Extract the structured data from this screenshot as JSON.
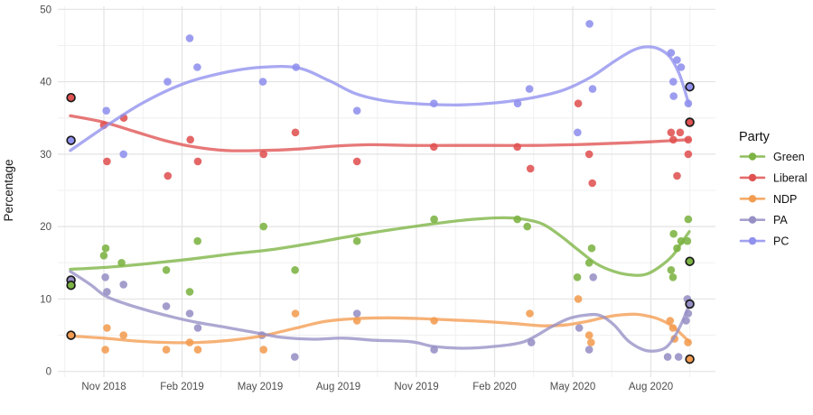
{
  "figure": {
    "y_axis_label": "Percentage",
    "y_ticks": [
      0,
      10,
      20,
      30,
      40,
      50
    ],
    "y_minor_ticks": [
      5,
      15,
      25,
      35,
      45
    ],
    "x_ticks": [
      "Nov 2018",
      "Feb 2019",
      "May 2019",
      "Aug 2019",
      "Nov 2019",
      "Feb 2020",
      "May 2020",
      "Aug 2020"
    ],
    "x_tick_years": [
      2018.8333,
      2019.0833,
      2019.3333,
      2019.5833,
      2019.8333,
      2020.0833,
      2020.3333,
      2020.5833
    ],
    "grid_major_color": "#e3e3e3",
    "grid_minor_color": "#f0f0f0",
    "axis_text_color": "#4d4d4d"
  },
  "legend": {
    "title": "Party",
    "items": [
      {
        "label": "Green",
        "color": "#7cb342"
      },
      {
        "label": "Liberal",
        "color": "#e05252"
      },
      {
        "label": "NDP",
        "color": "#f39c51"
      },
      {
        "label": "PA",
        "color": "#968fc5"
      },
      {
        "label": "PC",
        "color": "#9090ee"
      }
    ]
  },
  "chart_data": {
    "type": "scatter",
    "title": "",
    "xlabel": "",
    "ylabel": "Percentage",
    "ylim": [
      0,
      50
    ],
    "x_domain_years": [
      2018.69,
      2020.79
    ],
    "grid": true,
    "legend_position": "right",
    "description": "Poll results (points), loess trend lines, and circled election results (Sep 2018 and Sep 2020) by party.",
    "series": [
      {
        "name": "Green",
        "color": "#7cb342",
        "points": [
          [
            2018.833,
            16
          ],
          [
            2018.839,
            17
          ],
          [
            2018.89,
            15
          ],
          [
            2019.033,
            14
          ],
          [
            2019.108,
            11
          ],
          [
            2019.133,
            18
          ],
          [
            2019.344,
            20
          ],
          [
            2019.445,
            14
          ],
          [
            2019.643,
            18
          ],
          [
            2019.89,
            21
          ],
          [
            2020.156,
            21
          ],
          [
            2020.188,
            20
          ],
          [
            2020.348,
            13
          ],
          [
            2020.386,
            15
          ],
          [
            2020.394,
            17
          ],
          [
            2020.648,
            14
          ],
          [
            2020.654,
            13
          ],
          [
            2020.656,
            19
          ],
          [
            2020.667,
            17
          ],
          [
            2020.68,
            18
          ],
          [
            2020.7,
            18
          ],
          [
            2020.703,
            21
          ]
        ],
        "trend": [
          [
            2018.726,
            14.1
          ],
          [
            2018.848,
            14.4
          ],
          [
            2018.978,
            14.9
          ],
          [
            2019.108,
            15.5
          ],
          [
            2019.238,
            16.2
          ],
          [
            2019.368,
            16.8
          ],
          [
            2019.498,
            17.7
          ],
          [
            2019.628,
            18.7
          ],
          [
            2019.758,
            19.6
          ],
          [
            2019.873,
            20.3
          ],
          [
            2019.989,
            20.9
          ],
          [
            2020.09,
            21.2
          ],
          [
            2020.162,
            21.1
          ],
          [
            2020.234,
            20.4
          ],
          [
            2020.292,
            18.8
          ],
          [
            2020.35,
            16.8
          ],
          [
            2020.408,
            14.9
          ],
          [
            2020.466,
            13.8
          ],
          [
            2020.524,
            13.3
          ],
          [
            2020.567,
            13.4
          ],
          [
            2020.61,
            14.4
          ],
          [
            2020.653,
            16.0
          ],
          [
            2020.682,
            17.8
          ],
          [
            2020.706,
            19.3
          ]
        ]
      },
      {
        "name": "Liberal",
        "color": "#e05252",
        "points": [
          [
            2018.833,
            34
          ],
          [
            2018.843,
            29
          ],
          [
            2018.897,
            35
          ],
          [
            2019.038,
            27
          ],
          [
            2019.11,
            32
          ],
          [
            2019.134,
            29
          ],
          [
            2019.344,
            30
          ],
          [
            2019.446,
            33
          ],
          [
            2019.643,
            29
          ],
          [
            2019.889,
            31
          ],
          [
            2020.156,
            31
          ],
          [
            2020.198,
            28
          ],
          [
            2020.351,
            37
          ],
          [
            2020.386,
            30
          ],
          [
            2020.396,
            26
          ],
          [
            2020.648,
            33
          ],
          [
            2020.655,
            32
          ],
          [
            2020.667,
            27
          ],
          [
            2020.677,
            33
          ],
          [
            2020.703,
            32
          ],
          [
            2020.703,
            30
          ]
        ],
        "trend": [
          [
            2018.726,
            35.3
          ],
          [
            2018.833,
            34.4
          ],
          [
            2018.934,
            33.1
          ],
          [
            2019.035,
            31.8
          ],
          [
            2019.122,
            31.0
          ],
          [
            2019.223,
            30.5
          ],
          [
            2019.339,
            30.5
          ],
          [
            2019.455,
            30.7
          ],
          [
            2019.57,
            31.1
          ],
          [
            2019.686,
            31.3
          ],
          [
            2019.816,
            31.2
          ],
          [
            2019.946,
            31.2
          ],
          [
            2020.076,
            31.2
          ],
          [
            2020.206,
            31.2
          ],
          [
            2020.336,
            31.3
          ],
          [
            2020.466,
            31.5
          ],
          [
            2020.581,
            31.7
          ],
          [
            2020.706,
            32.0
          ]
        ]
      },
      {
        "name": "NDP",
        "color": "#f39c51",
        "points": [
          [
            2018.838,
            3
          ],
          [
            2018.843,
            6
          ],
          [
            2018.896,
            5
          ],
          [
            2019.033,
            3
          ],
          [
            2019.108,
            4
          ],
          [
            2019.134,
            3
          ],
          [
            2019.344,
            3
          ],
          [
            2019.446,
            8
          ],
          [
            2019.643,
            7
          ],
          [
            2019.89,
            7
          ],
          [
            2020.196,
            8
          ],
          [
            2020.351,
            10
          ],
          [
            2020.386,
            5
          ],
          [
            2020.392,
            4
          ],
          [
            2020.645,
            7
          ],
          [
            2020.654,
            6
          ],
          [
            2020.659,
            4.5
          ],
          [
            2020.702,
            4
          ]
        ],
        "trend": [
          [
            2018.726,
            4.9
          ],
          [
            2018.833,
            4.6
          ],
          [
            2018.934,
            4.2
          ],
          [
            2019.035,
            4.0
          ],
          [
            2019.136,
            4.0
          ],
          [
            2019.238,
            4.3
          ],
          [
            2019.339,
            4.9
          ],
          [
            2019.44,
            5.9
          ],
          [
            2019.541,
            6.9
          ],
          [
            2019.642,
            7.3
          ],
          [
            2019.744,
            7.4
          ],
          [
            2019.845,
            7.3
          ],
          [
            2019.946,
            7.1
          ],
          [
            2020.047,
            6.9
          ],
          [
            2020.148,
            6.6
          ],
          [
            2020.234,
            6.3
          ],
          [
            2020.307,
            6.4
          ],
          [
            2020.379,
            6.9
          ],
          [
            2020.451,
            7.6
          ],
          [
            2020.524,
            7.9
          ],
          [
            2020.567,
            7.7
          ],
          [
            2020.61,
            7.2
          ],
          [
            2020.653,
            6.2
          ],
          [
            2020.682,
            5.1
          ],
          [
            2020.706,
            4.1
          ]
        ]
      },
      {
        "name": "PA",
        "color": "#968fc5",
        "points": [
          [
            2018.838,
            13
          ],
          [
            2018.843,
            11
          ],
          [
            2018.896,
            12
          ],
          [
            2019.033,
            9
          ],
          [
            2019.108,
            8
          ],
          [
            2019.134,
            6
          ],
          [
            2019.339,
            5
          ],
          [
            2019.444,
            2
          ],
          [
            2019.643,
            8
          ],
          [
            2019.89,
            3
          ],
          [
            2020.201,
            4
          ],
          [
            2020.354,
            6
          ],
          [
            2020.386,
            3
          ],
          [
            2020.399,
            13
          ],
          [
            2020.637,
            2
          ],
          [
            2020.672,
            2
          ],
          [
            2020.696,
            7
          ],
          [
            2020.7,
            10
          ],
          [
            2020.703,
            8
          ]
        ],
        "trend": [
          [
            2018.726,
            13.8
          ],
          [
            2018.79,
            12.0
          ],
          [
            2018.839,
            10.4
          ],
          [
            2018.905,
            9.3
          ],
          [
            2018.983,
            8.3
          ],
          [
            2019.064,
            7.4
          ],
          [
            2019.128,
            6.8
          ],
          [
            2019.209,
            6.2
          ],
          [
            2019.272,
            5.7
          ],
          [
            2019.339,
            5.2
          ],
          [
            2019.405,
            4.7
          ],
          [
            2019.504,
            4.45
          ],
          [
            2019.599,
            4.6
          ],
          [
            2019.7,
            4.3
          ],
          [
            2019.816,
            4.1
          ],
          [
            2019.888,
            3.45
          ],
          [
            2019.983,
            3.2
          ],
          [
            2020.082,
            3.45
          ],
          [
            2020.177,
            4.1
          ],
          [
            2020.263,
            6.1
          ],
          [
            2020.321,
            7.3
          ],
          [
            2020.379,
            7.8
          ],
          [
            2020.423,
            7.7
          ],
          [
            2020.466,
            6.4
          ],
          [
            2020.509,
            4.3
          ],
          [
            2020.553,
            3.1
          ],
          [
            2020.59,
            2.8
          ],
          [
            2020.631,
            3.3
          ],
          [
            2020.659,
            4.8
          ],
          [
            2020.682,
            6.7
          ],
          [
            2020.706,
            9.2
          ]
        ]
      },
      {
        "name": "PC",
        "color": "#9090ee",
        "points": [
          [
            2018.841,
            36
          ],
          [
            2018.896,
            30
          ],
          [
            2019.037,
            40
          ],
          [
            2019.108,
            46
          ],
          [
            2019.132,
            42
          ],
          [
            2019.342,
            40
          ],
          [
            2019.448,
            42
          ],
          [
            2019.643,
            36
          ],
          [
            2019.889,
            37
          ],
          [
            2020.157,
            37
          ],
          [
            2020.195,
            39
          ],
          [
            2020.349,
            33
          ],
          [
            2020.387,
            48
          ],
          [
            2020.397,
            39
          ],
          [
            2020.648,
            44
          ],
          [
            2020.655,
            40
          ],
          [
            2020.656,
            38
          ],
          [
            2020.667,
            43
          ],
          [
            2020.68,
            42
          ],
          [
            2020.703,
            37
          ]
        ],
        "trend": [
          [
            2018.726,
            30.5
          ],
          [
            2018.848,
            34.1
          ],
          [
            2018.963,
            37.2
          ],
          [
            2019.093,
            39.8
          ],
          [
            2019.223,
            41.3
          ],
          [
            2019.339,
            42.0
          ],
          [
            2019.455,
            41.9
          ],
          [
            2019.556,
            40.1
          ],
          [
            2019.642,
            38.3
          ],
          [
            2019.744,
            37.3
          ],
          [
            2019.859,
            36.9
          ],
          [
            2019.975,
            36.8
          ],
          [
            2020.09,
            37.1
          ],
          [
            2020.206,
            37.8
          ],
          [
            2020.307,
            38.9
          ],
          [
            2020.394,
            40.7
          ],
          [
            2020.466,
            42.8
          ],
          [
            2020.524,
            44.3
          ],
          [
            2020.564,
            44.8
          ],
          [
            2020.605,
            44.6
          ],
          [
            2020.645,
            43.4
          ],
          [
            2020.674,
            41.1
          ],
          [
            2020.691,
            38.9
          ],
          [
            2020.706,
            36.7
          ]
        ]
      }
    ],
    "election_results": [
      {
        "party": "Liberal",
        "year": 2018.728,
        "value": 37.8
      },
      {
        "party": "PC",
        "year": 2018.728,
        "value": 31.9
      },
      {
        "party": "PA",
        "year": 2018.728,
        "value": 12.6
      },
      {
        "party": "Green",
        "year": 2018.728,
        "value": 11.9
      },
      {
        "party": "NDP",
        "year": 2018.728,
        "value": 5.0
      },
      {
        "party": "PC",
        "year": 2020.708,
        "value": 39.3
      },
      {
        "party": "Liberal",
        "year": 2020.708,
        "value": 34.4
      },
      {
        "party": "Green",
        "year": 2020.708,
        "value": 15.2
      },
      {
        "party": "PA",
        "year": 2020.708,
        "value": 9.3
      },
      {
        "party": "NDP",
        "year": 2020.708,
        "value": 1.7
      }
    ],
    "election_outline_color": "#1a1a1a"
  }
}
